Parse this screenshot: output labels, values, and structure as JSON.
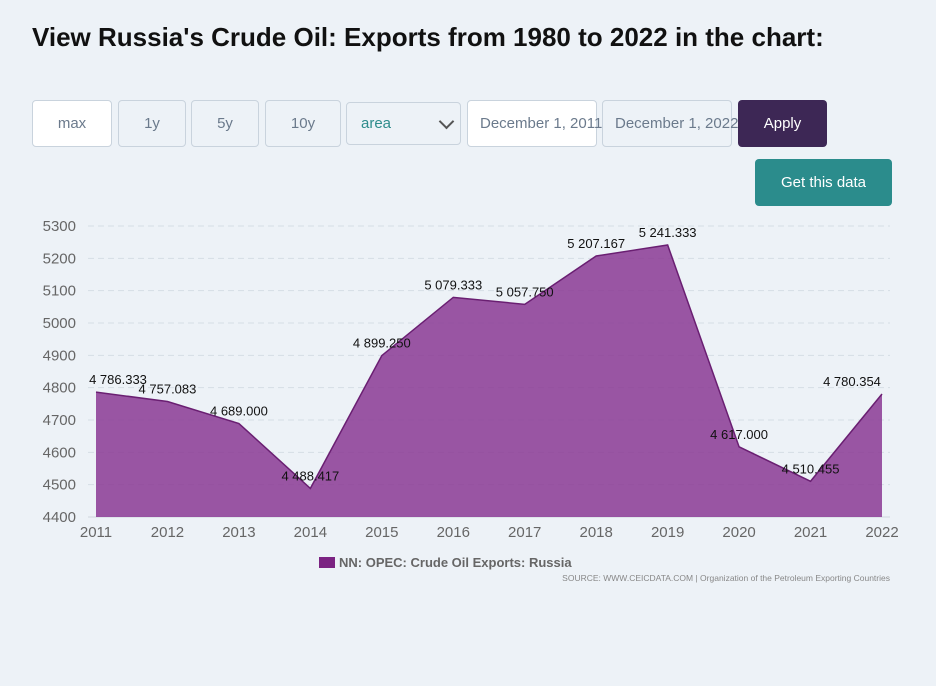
{
  "page": {
    "title": "View Russia's Crude Oil: Exports from 1980 to 2022 in the chart:"
  },
  "controls": {
    "ranges": [
      "max",
      "1y",
      "5y",
      "10y"
    ],
    "active_range": "max",
    "chart_type": "area",
    "date_from": "December 1, 2011",
    "date_to": "December 1, 2022",
    "apply_label": "Apply"
  },
  "get_data_label": "Get this data",
  "legend_label": "NN: OPEC: Crude Oil Exports: Russia",
  "source": "SOURCE: WWW.CEICDATA.COM | Organization of the Petroleum Exporting Countries",
  "colors": {
    "accent": "#3d2755",
    "teal": "#2b8c8c",
    "series": "#7b2382"
  },
  "chart_data": {
    "type": "area",
    "title": "",
    "xlabel": "",
    "ylabel": "",
    "x": [
      "2011",
      "2012",
      "2013",
      "2014",
      "2015",
      "2016",
      "2017",
      "2018",
      "2019",
      "2020",
      "2021",
      "2022"
    ],
    "series": [
      {
        "name": "NN: OPEC: Crude Oil Exports: Russia",
        "values": [
          4786.333,
          4757.083,
          4689.0,
          4488.417,
          4899.25,
          5079.333,
          5057.75,
          5207.167,
          5241.333,
          4617.0,
          4510.455,
          4780.354
        ],
        "labels": [
          "4 786.333",
          "4 757.083",
          "4 689.000",
          "4 488.417",
          "4 899.250",
          "5 079.333",
          "5 057.750",
          "5 207.167",
          "5 241.333",
          "4 617.000",
          "4 510.455",
          "4 780.354"
        ]
      }
    ],
    "ylim": [
      4400,
      5300
    ],
    "yticks": [
      4400,
      4500,
      4600,
      4700,
      4800,
      4900,
      5000,
      5100,
      5200,
      5300
    ],
    "grid": true,
    "legend": "bottom"
  }
}
